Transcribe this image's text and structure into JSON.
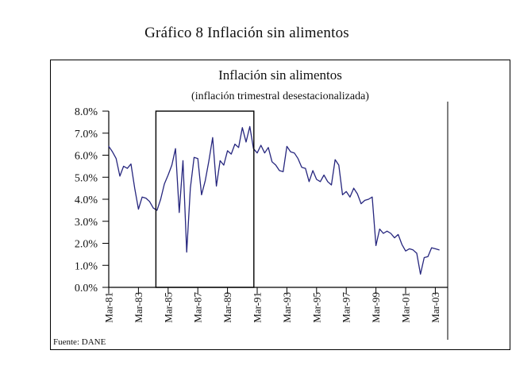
{
  "page": {
    "title": "Gráfico 8 Inflación sin alimentos",
    "source_note": "Fuente: DANE"
  },
  "chart_data": {
    "type": "line",
    "title": "Inflación sin alimentos",
    "subtitle": "(inflación trimestral desestacionalizada)",
    "xlabel": "",
    "ylabel": "",
    "grid": false,
    "legend": "none",
    "line_color": "#26267e",
    "frequency": "quarterly",
    "x_start": "Mar-81",
    "x_end": "Jun-03",
    "ylim": [
      0,
      8
    ],
    "y_tick_labels": [
      "8.0%",
      "7.0%",
      "6.0%",
      "5.0%",
      "4.0%",
      "3.0%",
      "2.0%",
      "1.0%",
      "0.0%"
    ],
    "x_tick_labels": [
      "Mar-81",
      "Mar-83",
      "Mar-85",
      "Mar-87",
      "Mar-89",
      "Mar-91",
      "Mar-93",
      "Mar-95",
      "Mar-97",
      "Mar-99",
      "Mar-01",
      "Mar-03"
    ],
    "quarters_per_x_tick": 8,
    "highlight_box": {
      "description": "black rectangle annotation spanning approx Sep-84 to Dec-90, full 0%-8% height",
      "x_from_quarter": 12.7,
      "x_to_quarter": 39.1,
      "y_from": 0,
      "y_to": 8
    },
    "series": [
      {
        "name": "Inflación sin alimentos (inflación trimestral desestacionalizada)",
        "unit": "%",
        "values": [
          6.4,
          6.15,
          5.85,
          5.05,
          5.5,
          5.4,
          5.6,
          4.5,
          3.55,
          4.1,
          4.05,
          3.9,
          3.6,
          3.5,
          4.0,
          4.7,
          5.1,
          5.55,
          6.3,
          3.4,
          5.75,
          1.6,
          4.5,
          5.9,
          5.85,
          4.2,
          4.85,
          5.75,
          6.8,
          4.6,
          5.75,
          5.55,
          6.2,
          6.05,
          6.5,
          6.35,
          7.25,
          6.6,
          7.3,
          6.3,
          6.1,
          6.45,
          6.1,
          6.35,
          5.7,
          5.55,
          5.3,
          5.25,
          6.4,
          6.15,
          6.1,
          5.85,
          5.45,
          5.4,
          4.8,
          5.3,
          4.9,
          4.8,
          5.1,
          4.8,
          4.65,
          5.8,
          5.55,
          4.2,
          4.35,
          4.1,
          4.5,
          4.25,
          3.8,
          3.95,
          4.0,
          4.1,
          1.9,
          2.65,
          2.45,
          2.55,
          2.45,
          2.25,
          2.4,
          1.95,
          1.65,
          1.75,
          1.7,
          1.55,
          0.6,
          1.35,
          1.4,
          1.8,
          1.75,
          1.7
        ]
      }
    ]
  }
}
